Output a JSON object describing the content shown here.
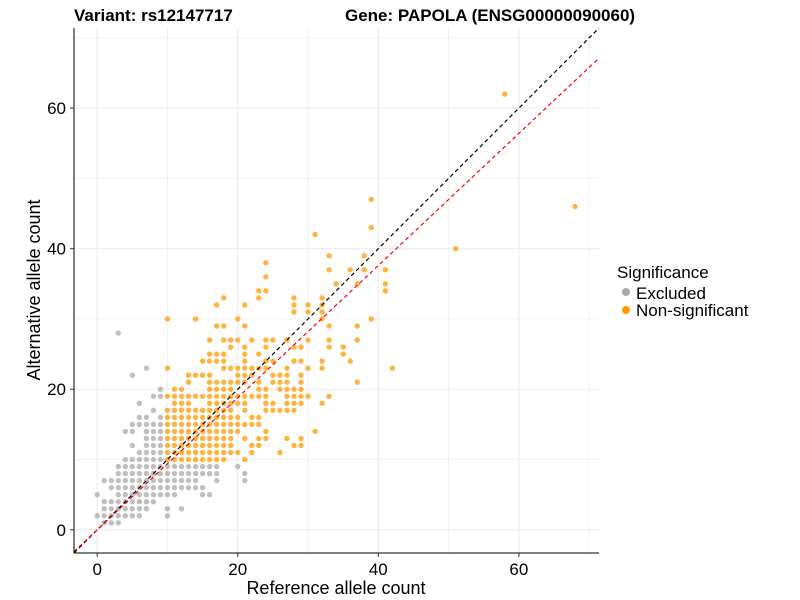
{
  "chart_data": {
    "type": "scatter",
    "title_left": "Variant: rs12147717",
    "title_right": "Gene: PAPOLA (ENSG00000090060)",
    "xlabel": "Reference allele count",
    "ylabel": "Alternative allele count",
    "xlim": [
      -3.3,
      71.4
    ],
    "ylim": [
      -3.3,
      71.4
    ],
    "xticks": [
      "0",
      "20",
      "40",
      "60"
    ],
    "yticks": [
      "0",
      "20",
      "40",
      "60"
    ],
    "grid": true,
    "legend": {
      "title": "Significance",
      "placement": "right"
    },
    "reference_lines": [
      {
        "name": "identity",
        "slope": 1,
        "intercept": 0,
        "color": "#000000",
        "style": "dashed"
      },
      {
        "name": "fit",
        "slope": 0.94,
        "intercept": 0,
        "color": "#ff0000",
        "style": "dashed"
      }
    ],
    "series": [
      {
        "name": "Excluded",
        "color": "#a9a9a9",
        "rows": [
          {
            "y": 1,
            "x": [
              1,
              2,
              3
            ]
          },
          {
            "y": 2,
            "x": [
              0,
              1,
              2,
              3,
              4,
              5,
              6,
              10
            ]
          },
          {
            "y": 3,
            "x": [
              1,
              2,
              3,
              4,
              5,
              6,
              7,
              10,
              12
            ]
          },
          {
            "y": 4,
            "x": [
              1,
              2,
              3,
              4,
              5,
              6,
              7,
              8
            ]
          },
          {
            "y": 5,
            "x": [
              0,
              3,
              4,
              5,
              6,
              7,
              8,
              9,
              10,
              11,
              15,
              16
            ]
          },
          {
            "y": 6,
            "x": [
              2,
              3,
              4,
              5,
              6,
              7,
              8,
              9,
              10,
              11,
              12,
              13,
              14,
              15
            ]
          },
          {
            "y": 7,
            "x": [
              1,
              2,
              3,
              4,
              5,
              6,
              7,
              8,
              9,
              10,
              11,
              12,
              13,
              14,
              17,
              21
            ]
          },
          {
            "y": 8,
            "x": [
              3,
              4,
              5,
              6,
              7,
              8,
              9,
              10,
              11,
              12,
              13,
              14,
              15,
              16,
              17,
              21
            ]
          },
          {
            "y": 9,
            "x": [
              3,
              4,
              5,
              6,
              7,
              8,
              9,
              10,
              11,
              12,
              13,
              14,
              15,
              16,
              17,
              20
            ]
          },
          {
            "y": 10,
            "x": [
              4,
              5,
              6,
              7,
              8,
              9
            ]
          },
          {
            "y": 11,
            "x": [
              6,
              7,
              8,
              9
            ]
          },
          {
            "y": 12,
            "x": [
              5,
              7,
              8,
              9
            ]
          },
          {
            "y": 13,
            "x": [
              7,
              8,
              9
            ]
          },
          {
            "y": 14,
            "x": [
              4,
              5,
              7,
              8,
              9
            ]
          },
          {
            "y": 15,
            "x": [
              5,
              6,
              7,
              8,
              9
            ]
          },
          {
            "y": 16,
            "x": [
              6,
              7,
              9
            ]
          },
          {
            "y": 17,
            "x": [
              8
            ]
          },
          {
            "y": 18,
            "x": [
              6
            ]
          },
          {
            "y": 19,
            "x": [
              8,
              9
            ]
          },
          {
            "y": 20,
            "x": [
              9
            ]
          },
          {
            "y": 22,
            "x": [
              5
            ]
          },
          {
            "y": 23,
            "x": [
              7
            ]
          },
          {
            "y": 28,
            "x": [
              3
            ]
          }
        ]
      },
      {
        "name": "Non-significant",
        "color": "#ff9900",
        "rows": [
          {
            "y": 10,
            "x": [
              10,
              11,
              12,
              13,
              14,
              15,
              16,
              17,
              18,
              21
            ]
          },
          {
            "y": 11,
            "x": [
              10,
              11,
              12,
              13,
              14,
              15,
              16,
              17,
              18,
              19,
              20,
              22,
              26
            ]
          },
          {
            "y": 12,
            "x": [
              10,
              11,
              12,
              13,
              14,
              15,
              16,
              17,
              18,
              19,
              22,
              23,
              28,
              29
            ]
          },
          {
            "y": 13,
            "x": [
              10,
              11,
              12,
              13,
              14,
              15,
              16,
              17,
              18,
              19,
              21,
              23,
              24,
              27,
              29
            ]
          },
          {
            "y": 14,
            "x": [
              10,
              11,
              12,
              13,
              14,
              15,
              16,
              17,
              18,
              19,
              20,
              24,
              31
            ]
          },
          {
            "y": 15,
            "x": [
              10,
              11,
              12,
              13,
              14,
              15,
              16,
              17,
              18,
              19,
              20,
              21,
              22,
              23
            ]
          },
          {
            "y": 16,
            "x": [
              10,
              11,
              12,
              13,
              14,
              15,
              16,
              17,
              18,
              19,
              20,
              22,
              23
            ]
          },
          {
            "y": 17,
            "x": [
              10,
              11,
              12,
              13,
              14,
              15,
              16,
              17,
              18,
              19,
              21,
              24,
              25,
              26,
              27,
              28
            ]
          },
          {
            "y": 18,
            "x": [
              11,
              12,
              13,
              16,
              17,
              18,
              19,
              20,
              21,
              24,
              25,
              27,
              28,
              29,
              32
            ]
          },
          {
            "y": 19,
            "x": [
              10,
              11,
              12,
              13,
              14,
              15,
              16,
              17,
              18,
              19,
              20,
              21,
              22,
              23,
              24,
              27,
              28,
              29,
              30,
              33
            ]
          },
          {
            "y": 20,
            "x": [
              11,
              12,
              16,
              17,
              18,
              19,
              23,
              24,
              26,
              27,
              28,
              29
            ]
          },
          {
            "y": 21,
            "x": [
              13,
              16,
              17,
              18,
              19,
              20,
              21,
              23,
              25,
              26,
              27,
              29,
              37
            ]
          },
          {
            "y": 22,
            "x": [
              13,
              14,
              15,
              16,
              20,
              21,
              22,
              25,
              26,
              27,
              29
            ]
          },
          {
            "y": 23,
            "x": [
              10,
              18,
              19,
              20,
              21,
              22,
              23,
              24,
              27,
              30,
              32,
              42
            ]
          },
          {
            "y": 24,
            "x": [
              15,
              16,
              17,
              18,
              21,
              24,
              25,
              28,
              29,
              32,
              36
            ]
          },
          {
            "y": 25,
            "x": [
              16,
              17,
              18,
              21,
              23,
              35
            ]
          },
          {
            "y": 26,
            "x": [
              19,
              21,
              24,
              28,
              29,
              33,
              35
            ]
          },
          {
            "y": 27,
            "x": [
              16,
              18,
              19,
              20,
              22,
              24,
              25,
              27,
              30,
              33,
              37
            ]
          },
          {
            "y": 29,
            "x": [
              17,
              18,
              21,
              33,
              37
            ]
          },
          {
            "y": 30,
            "x": [
              10,
              14,
              20,
              32,
              39
            ]
          },
          {
            "y": 31,
            "x": [
              28,
              30,
              32
            ]
          },
          {
            "y": 32,
            "x": [
              17,
              21,
              28,
              30,
              32
            ]
          },
          {
            "y": 33,
            "x": [
              18,
              23,
              28,
              32
            ]
          },
          {
            "y": 34,
            "x": [
              23,
              24,
              41
            ]
          },
          {
            "y": 35,
            "x": [
              34,
              37,
              41
            ]
          },
          {
            "y": 36,
            "x": [
              24
            ]
          },
          {
            "y": 37,
            "x": [
              33,
              36,
              38,
              41
            ]
          },
          {
            "y": 38,
            "x": [
              24
            ]
          },
          {
            "y": 39,
            "x": [
              33,
              38
            ]
          },
          {
            "y": 40,
            "x": [
              51
            ]
          },
          {
            "y": 42,
            "x": [
              31
            ]
          },
          {
            "y": 43,
            "x": [
              39
            ]
          },
          {
            "y": 46,
            "x": [
              68
            ]
          },
          {
            "y": 47,
            "x": [
              39
            ]
          },
          {
            "y": 62,
            "x": [
              58
            ]
          }
        ]
      }
    ]
  }
}
